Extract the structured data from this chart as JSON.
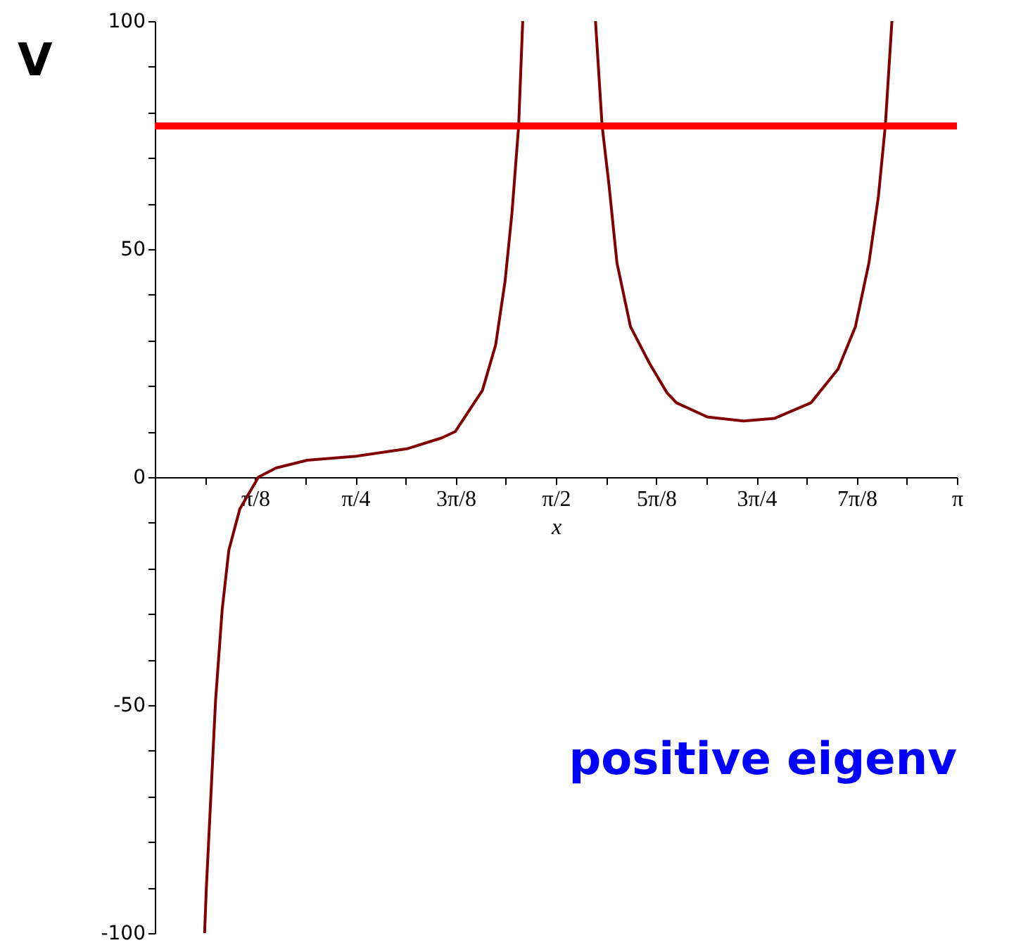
{
  "chart_data": {
    "type": "line",
    "xlabel": "x",
    "ylabel": "V",
    "annotations": [
      "positive eigenv"
    ],
    "xlim": [
      0,
      3.1416
    ],
    "ylim": [
      -100,
      100
    ],
    "xticks": [
      {
        "value": 0.1963,
        "label": null
      },
      {
        "value": 0.3927,
        "label": "π/8"
      },
      {
        "value": 0.589,
        "label": null
      },
      {
        "value": 0.7854,
        "label": "π/4"
      },
      {
        "value": 0.9817,
        "label": null
      },
      {
        "value": 1.1781,
        "label": "3π/8"
      },
      {
        "value": 1.3744,
        "label": null
      },
      {
        "value": 1.5708,
        "label": "π/2"
      },
      {
        "value": 1.7671,
        "label": null
      },
      {
        "value": 1.9635,
        "label": "5π/8"
      },
      {
        "value": 2.1598,
        "label": null
      },
      {
        "value": 2.3562,
        "label": "3π/4"
      },
      {
        "value": 2.5525,
        "label": null
      },
      {
        "value": 2.7489,
        "label": "7π/8"
      },
      {
        "value": 2.9452,
        "label": null
      },
      {
        "value": 3.1416,
        "label": "π"
      }
    ],
    "yticks": [
      -100,
      {
        "value": -90,
        "label": null
      },
      {
        "value": -80,
        "label": null
      },
      {
        "value": -70,
        "label": null
      },
      {
        "value": -60,
        "label": null
      },
      -50,
      {
        "value": -40,
        "label": null
      },
      {
        "value": -30,
        "label": null
      },
      {
        "value": -20,
        "label": null
      },
      {
        "value": -10,
        "label": null
      },
      0,
      {
        "value": 10,
        "label": null
      },
      {
        "value": 20,
        "label": null
      },
      {
        "value": 30,
        "label": null
      },
      {
        "value": 40,
        "label": null
      },
      50,
      {
        "value": 60,
        "label": null
      },
      {
        "value": 70,
        "label": null
      },
      {
        "value": 80,
        "label": null
      },
      {
        "value": 90,
        "label": null
      },
      100
    ],
    "grid": false,
    "legend": false,
    "marker": "none",
    "line_style": "solid",
    "ref_lines": [
      {
        "axis": "y",
        "value": 77,
        "color": "#ff0000"
      }
    ],
    "series": [
      {
        "color": "#800000",
        "x": [
          0.195,
          0.202,
          0.238,
          0.264,
          0.29,
          0.333,
          0.406,
          0.475,
          0.597,
          0.792,
          0.987,
          1.124,
          1.177,
          1.283,
          1.335,
          1.372,
          1.399,
          1.425,
          1.441
        ],
        "values": [
          -100,
          -90,
          -49,
          -29,
          -16,
          -7,
          0,
          2,
          3.7,
          4.6,
          6.2,
          8.6,
          10,
          19,
          29,
          43,
          58,
          77,
          100
        ]
      },
      {
        "color": "#800000",
        "x": [
          1.726,
          1.752,
          1.779,
          1.81,
          1.863,
          1.937,
          2.006,
          2.043,
          2.164,
          2.306,
          2.428,
          2.57,
          2.676,
          2.744,
          2.797,
          2.834,
          2.861,
          2.887
        ],
        "values": [
          100,
          77,
          64,
          47,
          33,
          25,
          18.5,
          16.3,
          13.2,
          12.3,
          12.9,
          16.3,
          23.7,
          33,
          47,
          61.5,
          77,
          100
        ]
      }
    ]
  }
}
